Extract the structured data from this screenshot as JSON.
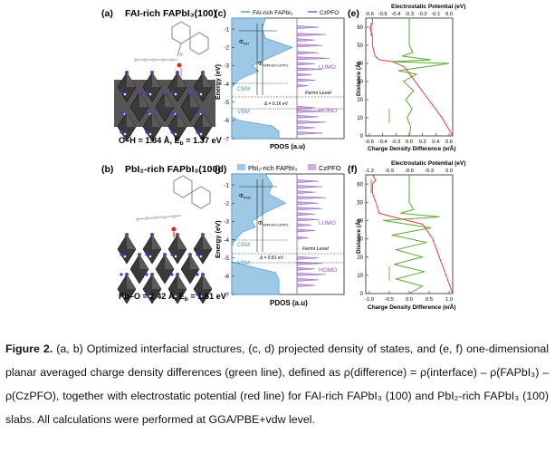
{
  "panels": {
    "a": {
      "label": "(a)",
      "title": "FAI-rich FAPbI₃(100)",
      "bond": "O–H = 1.84 Å, E",
      "eb_sub": "b",
      "eb_val": " = 1.37 eV"
    },
    "b": {
      "label": "(b)",
      "title": "PbI₂-rich FAPbI₃(100)",
      "bond": "Pb–O = 2.42 Å, E",
      "eb_sub": "b",
      "eb_val": " = 1.61 eV"
    },
    "c": {
      "label": "(c)",
      "legend1": "FAI-rich FAPbI₃",
      "legend2": "CzPFO",
      "ylabel": "Energy (eV)",
      "xlabel": "PDOS (a.u)",
      "yticks": [
        "-1",
        "-2",
        "-3",
        "-4",
        "-5",
        "-6",
        "-7"
      ],
      "lumo": "LUMO",
      "homo": "HOMO",
      "cbm": "CBM",
      "vbm": "VBM",
      "fermi": "Fermi Level",
      "delta": "Δ = 0.16 eV",
      "phi1": "Φ",
      "phi1_sub": "FAI",
      "phi2": "Φ",
      "phi2_sub": "FAPbI3+CzPFO"
    },
    "d": {
      "label": "(d)",
      "legend1": "PbI₂-rich FAPbI₃",
      "legend2": "CzPFO",
      "ylabel": "Energy (eV)",
      "xlabel": "PDOS (a.u)",
      "yticks": [
        "-1",
        "-2",
        "-3",
        "-4",
        "-5",
        "-6",
        "-7"
      ],
      "lumo": "LUMO",
      "homo": "HOMO",
      "cbm": "CBM",
      "vbm": "VBM",
      "fermi": "Fermi Level",
      "delta": "Δ = 0.81 eV",
      "phi1": "Φ",
      "phi1_sub": "PbI2",
      "phi2": "Φ",
      "phi2_sub": "FAPbI3+CzPFO"
    },
    "e": {
      "label": "(e)",
      "top_title": "Electrostatic Potential (eV)",
      "top_ticks": [
        "-0.6",
        "-0.5",
        "-0.4",
        "-0.3",
        "-0.2",
        "-0.1",
        "0.0"
      ],
      "bottom_title": "Charge Density Difference (e/Å)",
      "bottom_ticks": [
        "-0.6",
        "-0.4",
        "-0.2",
        "0.0",
        "0.2",
        "0.4",
        "0.6"
      ],
      "ylabel": "Distance (Å)",
      "yticks": [
        "0",
        "10",
        "20",
        "30",
        "40",
        "50",
        "60"
      ]
    },
    "f": {
      "label": "(f)",
      "top_title": "Electrostatic Potential (eV)",
      "top_ticks": [
        "-1.2",
        "-0.9",
        "-0.6",
        "-0.3",
        "0.0"
      ],
      "bottom_title": "Charge Density Difference (e/Å)",
      "bottom_ticks": [
        "-1.0",
        "-0.5",
        "0.0",
        "0.5",
        "1.0"
      ],
      "ylabel": "Distance (Å)",
      "yticks": [
        "0",
        "10",
        "20",
        "30",
        "40",
        "50",
        "60"
      ]
    }
  },
  "caption": {
    "fig": "Figure 2.",
    "text1": " (a, b) Optimized interfacial structures, (c, d) projected density of states, and (e, f) one-dimensional planar averaged charge density differences (green line), defined as ρ(difference) = ρ(interface) – ρ(FAPbI₃) – ρ(CzPFO), together with electrostatic potential (red line) for FAI-rich FAPbI₃ (100) and PbI₂-rich FAPbI₃ (100) slabs. All calculations were performed at GGA/PBE+vdw level."
  },
  "colors": {
    "fapbi": "#9ec9e6",
    "fapbi_line": "#4f9cd0",
    "czpfo": "#c9aee0",
    "czpfo_line": "#8e5bb5",
    "cdd": "#5aa832",
    "esp": "#e0302a",
    "octa": "#333333"
  },
  "chart_data": [
    {
      "type": "area",
      "panel": "c",
      "ylabel": "Energy (eV)",
      "xlabel": "PDOS (a.u)",
      "ylim": [
        -7,
        -0.4
      ],
      "series": [
        {
          "name": "FAI-rich FAPbI₃",
          "y": [
            -0.4,
            -1.0,
            -1.5,
            -2.0,
            -2.5,
            -3.0,
            -3.3,
            -3.6,
            -3.8,
            -4.0,
            -4.2,
            -5.8,
            -6.0,
            -6.3,
            -6.6,
            -7.0
          ],
          "pdos": [
            0.5,
            0.45,
            0.5,
            0.9,
            0.6,
            0.3,
            0.4,
            0.2,
            0.1,
            0.05,
            0,
            0,
            0.1,
            0.6,
            0.7,
            0.7
          ]
        },
        {
          "name": "CzPFO",
          "levels": [
            -0.9,
            -1.3,
            -1.6,
            -1.9,
            -2.3,
            -2.6,
            -2.9,
            -3.2,
            -3.5,
            -3.8,
            -4.1,
            -5.3,
            -5.5,
            -5.8,
            -6.1,
            -6.4,
            -6.7
          ],
          "heights": [
            0.6,
            0.8,
            0.5,
            0.7,
            0.6,
            0.9,
            0.5,
            0.7,
            0.4,
            0.5,
            0.3,
            0.5,
            0.7,
            0.6,
            0.8,
            0.5,
            0.7
          ]
        }
      ]
    },
    {
      "type": "area",
      "panel": "d",
      "ylabel": "Energy (eV)",
      "xlabel": "PDOS (a.u)",
      "ylim": [
        -7,
        -0.4
      ],
      "series": [
        {
          "name": "PbI₂-rich FAPbI₃",
          "y": [
            -0.4,
            -1.0,
            -1.5,
            -2.0,
            -2.5,
            -3.0,
            -3.3,
            -3.6,
            -3.9,
            -4.2,
            -4.4,
            -5.2,
            -5.5,
            -5.8,
            -6.2,
            -7.0
          ],
          "pdos": [
            0.5,
            0.6,
            0.55,
            0.8,
            0.5,
            0.3,
            0.35,
            0.15,
            0.08,
            0.02,
            0,
            0,
            0.3,
            0.65,
            0.7,
            0.7
          ]
        },
        {
          "name": "CzPFO",
          "levels": [
            -0.8,
            -1.1,
            -1.4,
            -1.7,
            -2.0,
            -2.3,
            -2.6,
            -2.9,
            -3.2,
            -3.5,
            -3.9,
            -5.0,
            -5.3,
            -5.6,
            -5.9,
            -6.2,
            -6.5
          ],
          "heights": [
            0.6,
            0.7,
            0.5,
            0.8,
            0.6,
            0.7,
            0.5,
            0.6,
            0.4,
            0.5,
            0.3,
            0.6,
            0.7,
            0.5,
            0.8,
            0.6,
            0.5
          ]
        }
      ]
    },
    {
      "type": "line",
      "panel": "e",
      "ylabel": "Distance (Å)",
      "ylim": [
        0,
        65
      ],
      "series": [
        {
          "name": "Charge Density Difference",
          "xlim": [
            -0.6,
            0.6
          ],
          "y": [
            0,
            5,
            10,
            15,
            20,
            25,
            30,
            34,
            36,
            38,
            40,
            41,
            42,
            44,
            46,
            50,
            55,
            60,
            65
          ],
          "x": [
            0,
            0.02,
            -0.03,
            0.04,
            -0.05,
            0.06,
            -0.08,
            0.1,
            -0.15,
            0.2,
            0.55,
            -0.25,
            0.3,
            -0.1,
            0.05,
            0,
            0,
            0,
            0
          ]
        },
        {
          "name": "Electrostatic Potential",
          "xlim": [
            -0.65,
            0.0
          ],
          "y": [
            0,
            10,
            20,
            30,
            38,
            41,
            42,
            44,
            50,
            55,
            60,
            62,
            65
          ],
          "x": [
            0,
            -0.08,
            -0.18,
            -0.28,
            -0.36,
            -0.45,
            -0.55,
            -0.58,
            -0.6,
            -0.6,
            -0.62,
            -0.6,
            -0.6
          ]
        }
      ]
    },
    {
      "type": "line",
      "panel": "f",
      "ylabel": "Distance (Å)",
      "ylim": [
        0,
        65
      ],
      "series": [
        {
          "name": "Charge Density Difference",
          "xlim": [
            -1.0,
            1.0
          ],
          "y": [
            0,
            4,
            8,
            12,
            16,
            20,
            24,
            28,
            32,
            36,
            40,
            42,
            44,
            46,
            50,
            55,
            60,
            65
          ],
          "x": [
            0,
            0.3,
            -0.3,
            0.35,
            -0.35,
            0.3,
            -0.3,
            0.4,
            -0.4,
            0.5,
            -0.6,
            0.7,
            -0.2,
            0.1,
            0,
            0,
            0,
            0
          ]
        },
        {
          "name": "Electrostatic Potential",
          "xlim": [
            -1.3,
            0.0
          ],
          "y": [
            0,
            10,
            20,
            30,
            38,
            42,
            44,
            50,
            55,
            60,
            62,
            65
          ],
          "x": [
            0,
            -0.1,
            -0.2,
            -0.3,
            -0.45,
            -0.9,
            -1.1,
            -1.15,
            -1.2,
            -1.2,
            -1.15,
            -1.2
          ]
        }
      ]
    }
  ]
}
